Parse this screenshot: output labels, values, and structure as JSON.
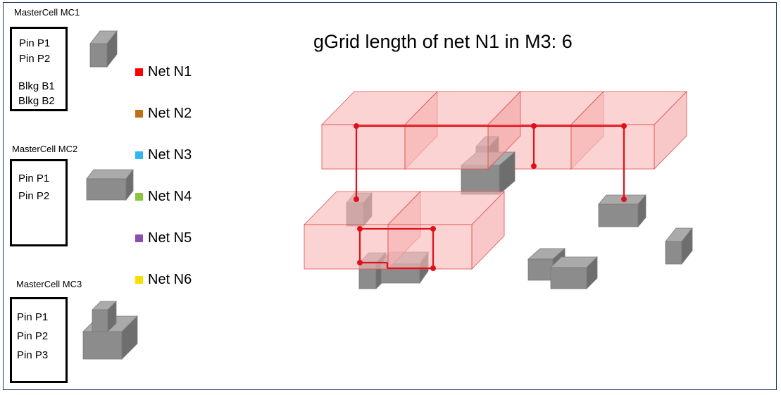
{
  "title": "gGrid length of net N1 in M3: 6",
  "mastercells": [
    {
      "label": "MasterCell MC1",
      "lines": [
        "Pin P1",
        "Pin P2",
        "Blkg B1",
        "Blkg B2"
      ]
    },
    {
      "label": "MasterCell MC2",
      "lines": [
        "Pin P1",
        "Pin P2"
      ]
    },
    {
      "label": "MasterCell MC3",
      "lines": [
        "Pin P1",
        "Pin P2",
        "Pin P3"
      ]
    }
  ],
  "legend": [
    {
      "label": "Net N1",
      "color": "#ff0000"
    },
    {
      "label": "Net N2",
      "color": "#c07010"
    },
    {
      "label": "Net N3",
      "color": "#33b5f0"
    },
    {
      "label": "Net N4",
      "color": "#8cc63f"
    },
    {
      "label": "Net N5",
      "color": "#8a4eb0"
    },
    {
      "label": "Net N6",
      "color": "#f5e000"
    }
  ],
  "colors": {
    "net_route": "#e0101a",
    "ggrid_fill": "#f9b8b8",
    "ggrid_stroke": "#e05050",
    "cell_front": "#8c8c8c",
    "cell_top": "#aaaaaa",
    "cell_side": "#6e6e6e",
    "frame": "#1f3864"
  }
}
